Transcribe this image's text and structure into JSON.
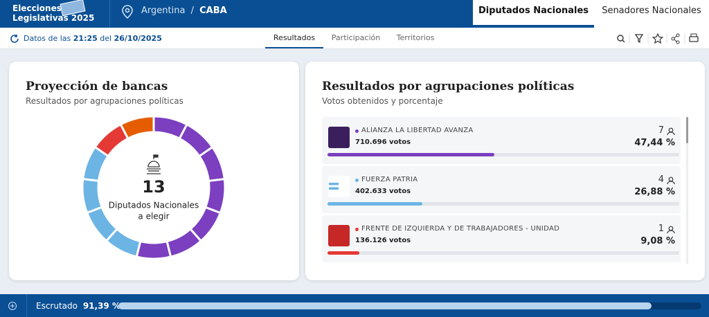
{
  "header": {
    "title_line1": "Elecciones",
    "title_line2": "Legislativas 2025",
    "location": "Argentina",
    "separator": "/",
    "district": "CABA",
    "tabs": [
      "Diputados Nacionales",
      "Senadores Nacionales"
    ]
  },
  "subheader": {
    "prefix": "Datos de las",
    "time": "21:25",
    "connector": "del",
    "date": "26/10/2025",
    "tabs": [
      "Resultados",
      "Participación",
      "Territorios"
    ]
  },
  "seats_card": {
    "title": "Proyección de bancas",
    "subtitle": "Resultados por agrupaciones políticas",
    "total": 13,
    "center_label_1": "Diputados Nacionales",
    "center_label_2": "a elegir",
    "segments": [
      {
        "color": "#7b3fc0",
        "seats": 7
      },
      {
        "color": "#6cb4e4",
        "seats": 4
      },
      {
        "color": "#e53935",
        "seats": 1
      },
      {
        "color": "#e65c00",
        "seats": 1
      }
    ]
  },
  "results_card": {
    "title": "Resultados por agrupaciones políticas",
    "subtitle": "Votos obtenidos y porcentaje",
    "parties": [
      {
        "name": "ALIANZA LA LIBERTAD AVANZA",
        "votes": "710.696 votos",
        "seats": 7,
        "percent": 47.44,
        "percent_label": "47,44 %",
        "color": "#7b3fc0"
      },
      {
        "name": "FUERZA PATRIA",
        "votes": "402.633 votos",
        "seats": 4,
        "percent": 26.88,
        "percent_label": "26,88 %",
        "color": "#6cb4e4"
      },
      {
        "name": "FRENTE DE IZQUIERDA Y DE TRABAJADORES - UNIDAD",
        "votes": "136.126 votos",
        "seats": 1,
        "percent": 9.08,
        "percent_label": "9,08 %",
        "color": "#e53935"
      }
    ]
  },
  "footer": {
    "label": "Escrutado",
    "scrutinized": 91.39,
    "scrutinized_label": "91,39 %"
  }
}
